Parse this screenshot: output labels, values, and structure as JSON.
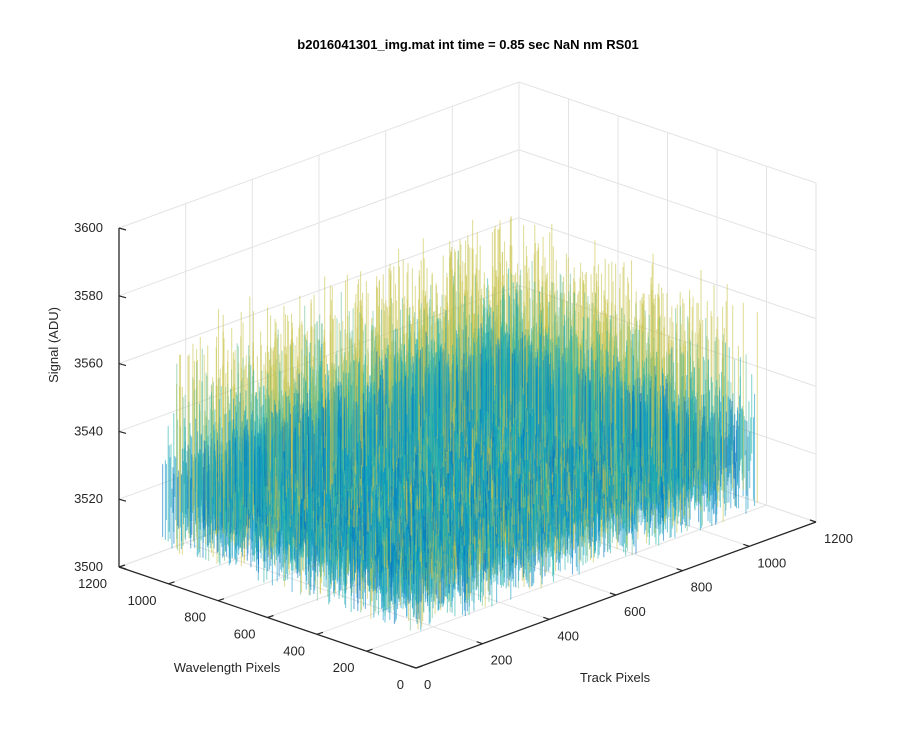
{
  "chart_data": {
    "type": "surface",
    "title": "b2016041301_img.mat int time = 0.85 sec  NaN nm RS01",
    "xlabel": "Track Pixels",
    "ylabel": "Wavelength Pixels",
    "zlabel": "Signal (ADU)",
    "xlim": [
      0,
      1200
    ],
    "ylim": [
      0,
      1200
    ],
    "zlim": [
      3500,
      3600
    ],
    "x_ticks": [
      "0",
      "200",
      "400",
      "600",
      "800",
      "1000",
      "1200"
    ],
    "y_ticks": [
      "0",
      "200",
      "400",
      "600",
      "800",
      "1000",
      "1200"
    ],
    "z_ticks": [
      "3500",
      "3520",
      "3540",
      "3560",
      "3580",
      "3600"
    ],
    "x_data_range": [
      0,
      1024
    ],
    "y_data_range": [
      0,
      1024
    ],
    "signal_mean": 3530,
    "signal_spread": [
      3510,
      3575
    ],
    "colormap": [
      "#0072BD",
      "#1199c4",
      "#20b2aa",
      "#6fc08f",
      "#c8c34a"
    ],
    "grid": true,
    "box": false,
    "view": "3d-default"
  }
}
